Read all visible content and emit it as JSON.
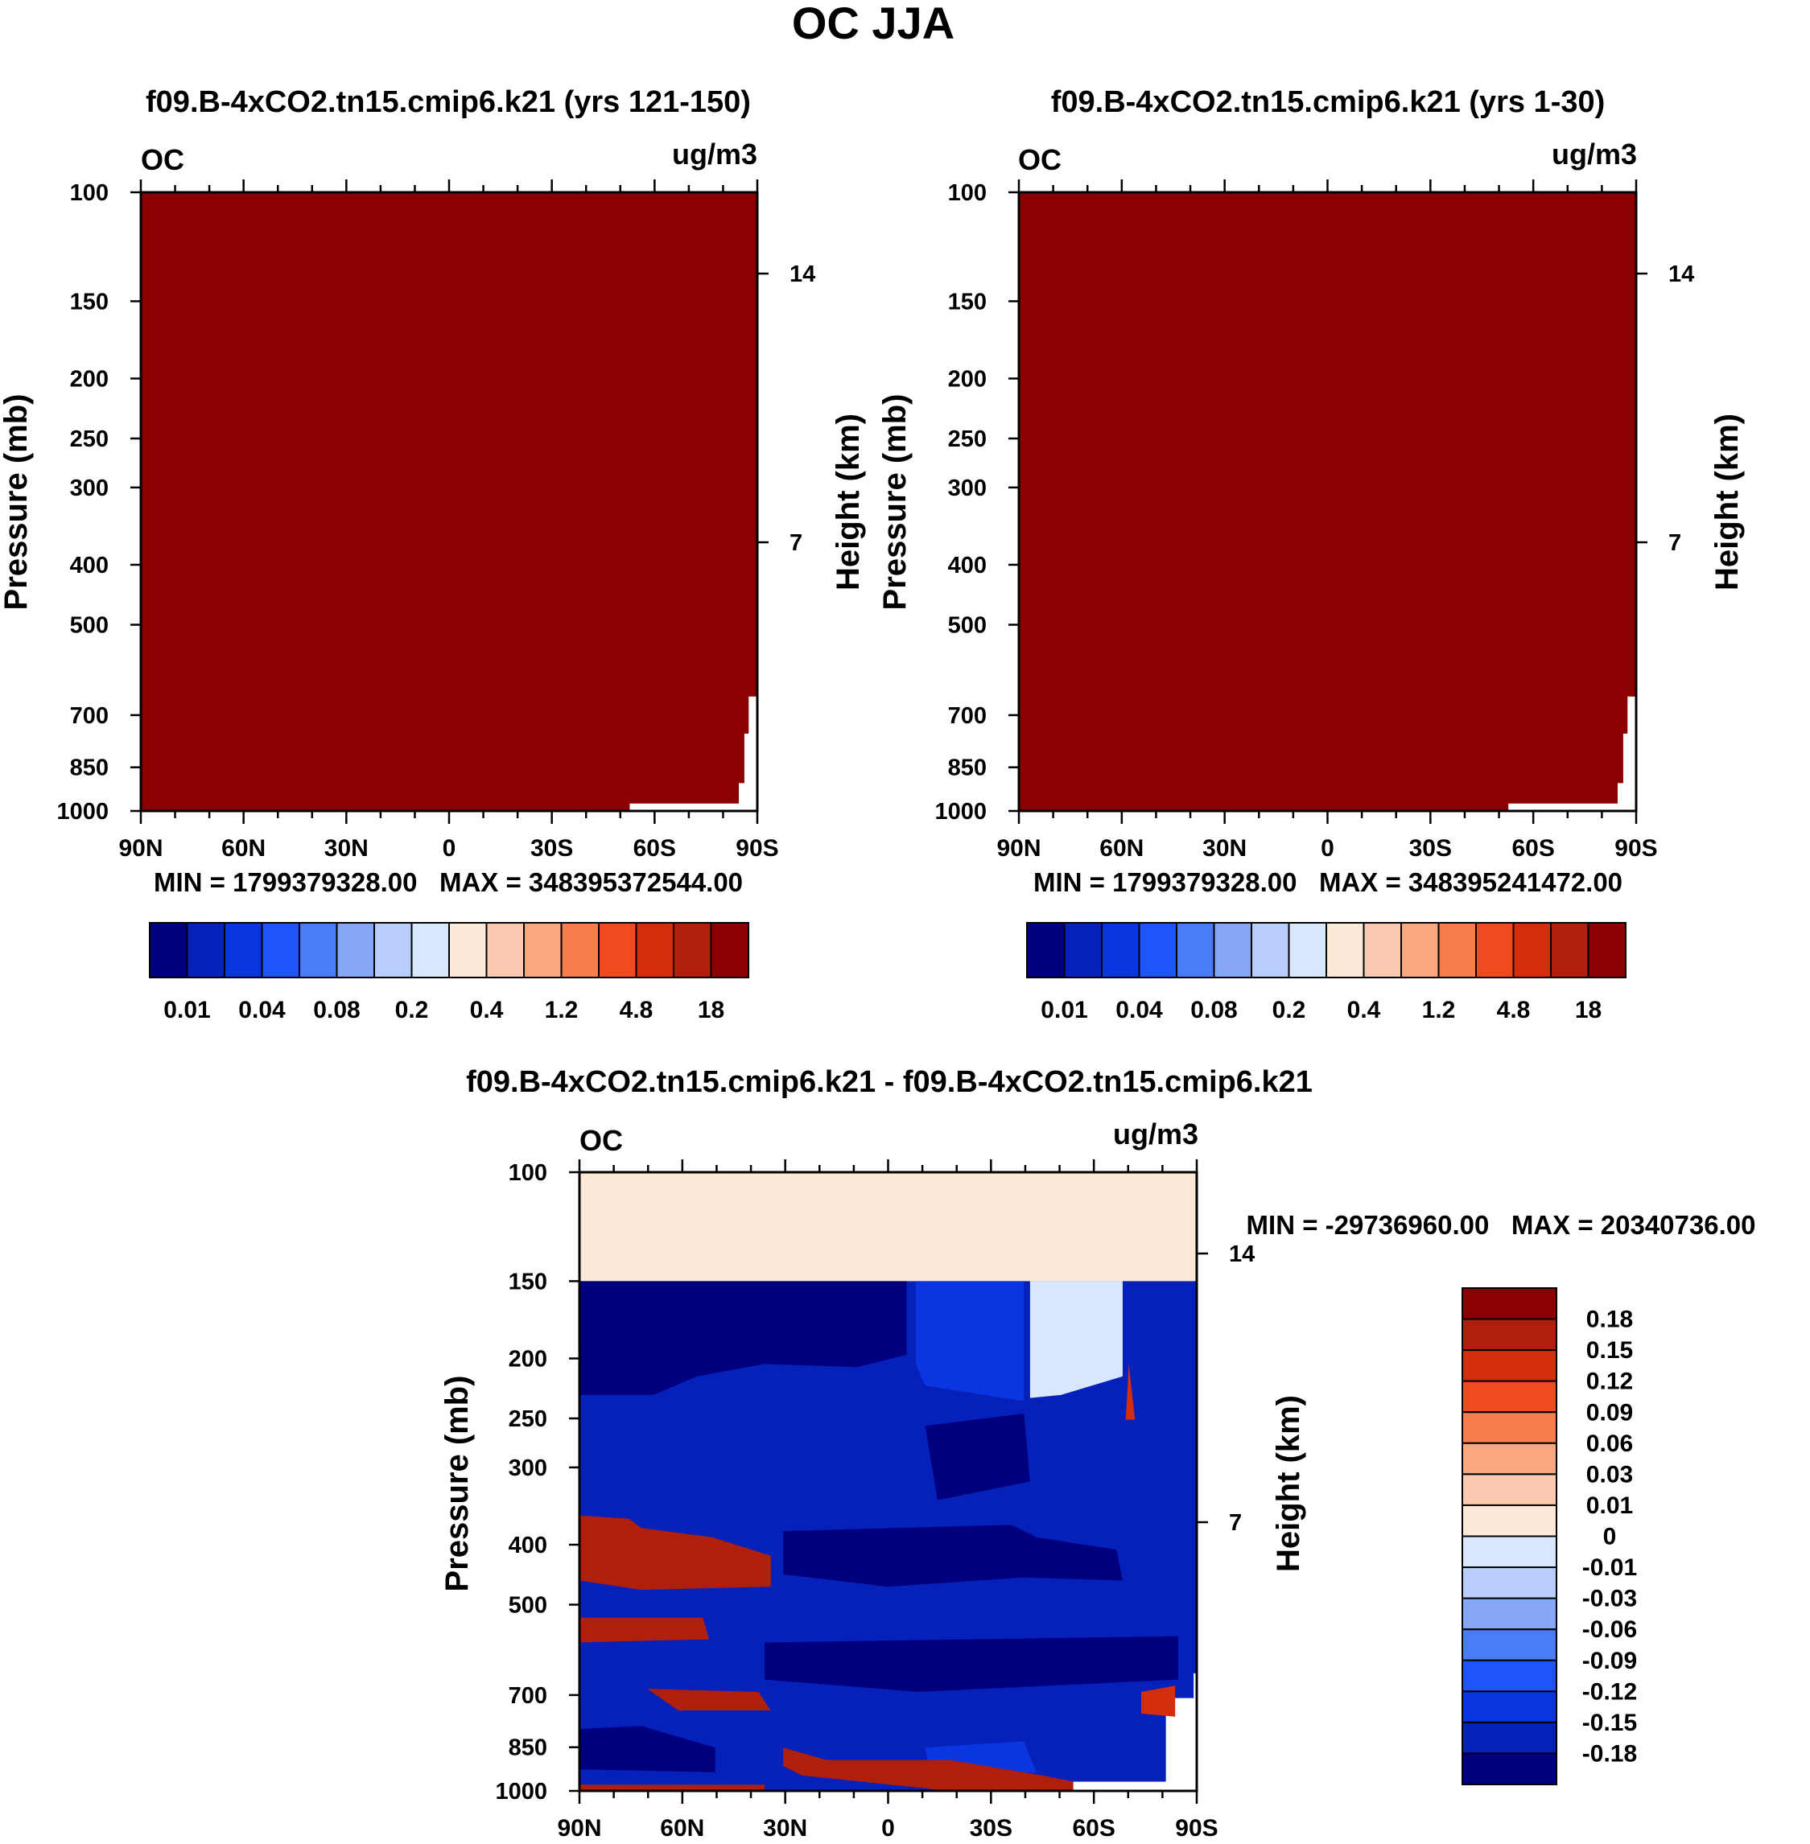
{
  "main_title": "OC JJA",
  "panels": [
    {
      "title": "f09.B-4xCO2.tn15.cmip6.k21 (yrs 121-150)",
      "var_label": "OC",
      "units": "ug/m3",
      "ylabel": "Pressure (mb)",
      "ylabel_right": "Height (km)",
      "stats": "MIN = 1799379328.00   MAX = 348395372544.00",
      "colorbar_labels": [
        "0.01",
        "0.04",
        "0.08",
        "0.2",
        "0.4",
        "1.2",
        "4.8",
        "18"
      ]
    },
    {
      "title": "f09.B-4xCO2.tn15.cmip6.k21 (yrs 1-30)",
      "var_label": "OC",
      "units": "ug/m3",
      "ylabel": "Pressure (mb)",
      "ylabel_right": "Height (km)",
      "stats": "MIN = 1799379328.00   MAX = 348395241472.00",
      "colorbar_labels": [
        "0.01",
        "0.04",
        "0.08",
        "0.2",
        "0.4",
        "1.2",
        "4.8",
        "18"
      ]
    },
    {
      "title": "f09.B-4xCO2.tn15.cmip6.k21 - f09.B-4xCO2.tn15.cmip6.k21",
      "var_label": "OC",
      "units": "ug/m3",
      "ylabel": "Pressure (mb)",
      "ylabel_right": "Height (km)",
      "stats": "MIN = -29736960.00   MAX = 20340736.00",
      "colorbar_labels": [
        "0.18",
        "0.15",
        "0.12",
        "0.09",
        "0.06",
        "0.03",
        "0.01",
        "0",
        "-0.01",
        "-0.03",
        "-0.06",
        "-0.09",
        "-0.12",
        "-0.15",
        "-0.18"
      ]
    }
  ],
  "chart_data": [
    {
      "type": "heatmap",
      "title": "f09.B-4xCO2.tn15.cmip6.k21 (yrs 121-150)",
      "xlabel": "",
      "ylabel": "Pressure (mb)",
      "y2label": "Height (km)",
      "x_ticks": [
        "90N",
        "60N",
        "30N",
        "0",
        "30S",
        "60S",
        "90S"
      ],
      "y_ticks": [
        100,
        150,
        200,
        250,
        300,
        400,
        500,
        700,
        850,
        1000
      ],
      "y2_ticks": [
        7,
        14
      ],
      "y_scale": "log",
      "y_reversed": true,
      "field": "saturated at top contour level (>18) over the entire domain except missing values near surface at 50S-90S",
      "colors": [
        "#00007f",
        "#0620ba",
        "#0a36e2",
        "#1e55fa",
        "#4a7cf5",
        "#86a6f7",
        "#b9cdfa",
        "#d8e7fb",
        "#fde9d8",
        "#fbcab0",
        "#f9a77f",
        "#f57e4b",
        "#ef4b1f",
        "#d52e0c",
        "#b01f0c",
        "#8b0000"
      ],
      "levels": [
        0.01,
        0.04,
        0.08,
        0.2,
        0.4,
        1.2,
        4.8,
        18
      ]
    },
    {
      "type": "heatmap",
      "title": "f09.B-4xCO2.tn15.cmip6.k21 (yrs 1-30)",
      "xlabel": "",
      "ylabel": "Pressure (mb)",
      "y2label": "Height (km)",
      "x_ticks": [
        "90N",
        "60N",
        "30N",
        "0",
        "30S",
        "60S",
        "90S"
      ],
      "y_ticks": [
        100,
        150,
        200,
        250,
        300,
        400,
        500,
        700,
        850,
        1000
      ],
      "y2_ticks": [
        7,
        14
      ],
      "y_scale": "log",
      "y_reversed": true,
      "field": "saturated at top contour level (>18) over the entire domain except missing values near surface at 50S-90S",
      "colors": [
        "#00007f",
        "#0620ba",
        "#0a36e2",
        "#1e55fa",
        "#4a7cf5",
        "#86a6f7",
        "#b9cdfa",
        "#d8e7fb",
        "#fde9d8",
        "#fbcab0",
        "#f9a77f",
        "#f57e4b",
        "#ef4b1f",
        "#d52e0c",
        "#b01f0c",
        "#8b0000"
      ],
      "levels": [
        0.01,
        0.04,
        0.08,
        0.2,
        0.4,
        1.2,
        4.8,
        18
      ]
    },
    {
      "type": "heatmap",
      "title": "f09.B-4xCO2.tn15.cmip6.k21 - f09.B-4xCO2.tn15.cmip6.k21",
      "xlabel": "",
      "ylabel": "Pressure (mb)",
      "y2label": "Height (km)",
      "x_ticks": [
        "90N",
        "60N",
        "30N",
        "0",
        "30S",
        "60S",
        "90S"
      ],
      "y_ticks": [
        100,
        150,
        200,
        250,
        300,
        400,
        500,
        700,
        850,
        1000
      ],
      "y2_ticks": [
        7,
        14
      ],
      "y_scale": "log",
      "y_reversed": true,
      "field": "0 to 0.01 between 100-150 mb; below 150 mb mostly below -0.18 and -0.15 to -0.18, with bands of 0.15 to 0.18 near 380, 520, 650 and 930 mb in the northern hemisphere; -0.01 to 0 near 40S-65S at 150-230 mb",
      "colors": [
        "#00007f",
        "#0620ba",
        "#0a36e2",
        "#1e55fa",
        "#4a7cf5",
        "#86a6f7",
        "#b9cdfa",
        "#d8e7fb",
        "#fde9d8",
        "#fbcab0",
        "#f9a77f",
        "#f57e4b",
        "#ef4b1f",
        "#d52e0c",
        "#b01f0c",
        "#8b0000"
      ],
      "levels": [
        -0.18,
        -0.15,
        -0.12,
        -0.09,
        -0.06,
        -0.03,
        -0.01,
        0,
        0.01,
        0.03,
        0.06,
        0.09,
        0.12,
        0.15,
        0.18
      ]
    }
  ]
}
